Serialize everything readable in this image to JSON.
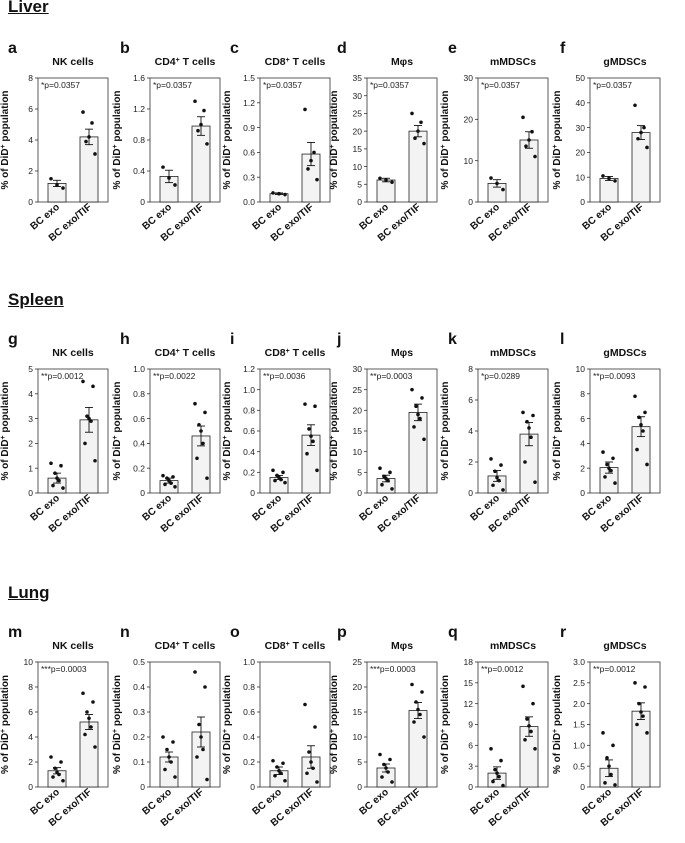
{
  "sections": [
    {
      "title": "Liver"
    },
    {
      "title": "Spleen"
    },
    {
      "title": "Lung"
    }
  ],
  "colors": {
    "bar_fill": "#f3f3f3",
    "bar_stroke": "#222222",
    "point": "#111111"
  },
  "chart_data": [
    {
      "panel": "a",
      "title": "NK cells",
      "title_sup": "",
      "title_suffix": "",
      "section": "Liver",
      "type": "bar",
      "ylabel": "% of DiD+ population",
      "categories": [
        "BC exo",
        "BC exo/TIF"
      ],
      "means": [
        1.2,
        4.2
      ],
      "sem": [
        0.2,
        0.5
      ],
      "points": [
        [
          0.9,
          1.1,
          1.5
        ],
        [
          3.1,
          3.9,
          4.2,
          5.1,
          5.8
        ]
      ],
      "annotation": "*p=0.0357",
      "ylim": [
        0,
        8
      ],
      "yticks": [
        0,
        2,
        4,
        6,
        8
      ],
      "tick_labels": [
        "0",
        "2",
        "4",
        "6",
        "8"
      ]
    },
    {
      "panel": "b",
      "title": "CD4",
      "title_sup": "+",
      "title_suffix": " T cells",
      "section": "Liver",
      "type": "bar",
      "ylabel": "% of DiD+ population",
      "categories": [
        "BC exo",
        "BC exo/TIF"
      ],
      "means": [
        0.33,
        0.98
      ],
      "sem": [
        0.08,
        0.12
      ],
      "points": [
        [
          0.22,
          0.31,
          0.45
        ],
        [
          0.75,
          0.92,
          1.0,
          1.18,
          1.3
        ]
      ],
      "annotation": "*p=0.0357",
      "ylim": [
        0,
        1.6
      ],
      "yticks": [
        0,
        0.4,
        0.8,
        1.2,
        1.6
      ],
      "tick_labels": [
        "0",
        "0.4",
        "0.8",
        "1.2",
        "1.6"
      ]
    },
    {
      "panel": "c",
      "title": "CD8",
      "title_sup": "+",
      "title_suffix": " T cells",
      "section": "Liver",
      "type": "bar",
      "ylabel": "% of DiD+ population",
      "categories": [
        "BC exo",
        "BC exo/TIF"
      ],
      "means": [
        0.1,
        0.58
      ],
      "sem": [
        0.01,
        0.14
      ],
      "points": [
        [
          0.09,
          0.1,
          0.11
        ],
        [
          0.27,
          0.4,
          0.5,
          0.6,
          1.12
        ]
      ],
      "annotation": "*p=0.0357",
      "ylim": [
        0,
        1.5
      ],
      "yticks": [
        0,
        0.3,
        0.6,
        0.9,
        1.2,
        1.5
      ],
      "tick_labels": [
        "0.0",
        "0.3",
        "0.6",
        "0.9",
        "1.2",
        "1.5"
      ]
    },
    {
      "panel": "d",
      "title": "Mφs",
      "title_sup": "",
      "title_suffix": "",
      "section": "Liver",
      "type": "bar",
      "ylabel": "% of DiD+ population",
      "categories": [
        "BC exo",
        "BC exo/TIF"
      ],
      "means": [
        6.2,
        20
      ],
      "sem": [
        0.5,
        1.6
      ],
      "points": [
        [
          5.6,
          6.2,
          6.7
        ],
        [
          16.5,
          18,
          20,
          22.5,
          25
        ]
      ],
      "annotation": "*p=0.0357",
      "ylim": [
        0,
        35
      ],
      "yticks": [
        0,
        5,
        10,
        15,
        20,
        25,
        30,
        35
      ],
      "tick_labels": [
        "0",
        "5",
        "10",
        "15",
        "20",
        "25",
        "30",
        "35"
      ]
    },
    {
      "panel": "e",
      "title": "mMDSCs",
      "title_sup": "",
      "title_suffix": "",
      "section": "Liver",
      "type": "bar",
      "ylabel": "% of DiD+ population",
      "categories": [
        "BC exo",
        "BC exo/TIF"
      ],
      "means": [
        4.5,
        15
      ],
      "sem": [
        0.9,
        2
      ],
      "points": [
        [
          3,
          4.5,
          5.8
        ],
        [
          11,
          13.5,
          15,
          17,
          20.5
        ]
      ],
      "annotation": "*p=0.0357",
      "ylim": [
        0,
        30
      ],
      "yticks": [
        0,
        10,
        20,
        30
      ],
      "tick_labels": [
        "0",
        "10",
        "20",
        "30"
      ]
    },
    {
      "panel": "f",
      "title": "gMDSCs",
      "title_sup": "",
      "title_suffix": "",
      "section": "Liver",
      "type": "bar",
      "ylabel": "% of DiD+ population",
      "categories": [
        "BC exo",
        "BC exo/TIF"
      ],
      "means": [
        9.5,
        28
      ],
      "sem": [
        0.8,
        2.8
      ],
      "points": [
        [
          8.5,
          9.5,
          10.5
        ],
        [
          22,
          25.5,
          28,
          30,
          39
        ]
      ],
      "annotation": "*p=0.0357",
      "ylim": [
        0,
        50
      ],
      "yticks": [
        0,
        10,
        20,
        30,
        40,
        50
      ],
      "tick_labels": [
        "0",
        "10",
        "20",
        "30",
        "40",
        "50"
      ]
    },
    {
      "panel": "g",
      "title": "NK cells",
      "title_sup": "",
      "title_suffix": "",
      "section": "Spleen",
      "type": "bar",
      "ylabel": "% of DiD+ population",
      "categories": [
        "BC exo",
        "BC exo/TIF"
      ],
      "means": [
        0.6,
        2.95
      ],
      "sem": [
        0.2,
        0.5
      ],
      "points": [
        [
          0.2,
          0.3,
          0.5,
          0.6,
          0.8,
          1.1,
          1.2
        ],
        [
          1.3,
          2.0,
          2.9,
          3.0,
          3.1,
          4.3,
          4.5
        ]
      ],
      "annotation": "**p=0.0012",
      "ylim": [
        0,
        5
      ],
      "yticks": [
        0,
        1,
        2,
        3,
        4,
        5
      ],
      "tick_labels": [
        "0",
        "1",
        "2",
        "3",
        "4",
        "5"
      ]
    },
    {
      "panel": "h",
      "title": "CD4",
      "title_sup": "+",
      "title_suffix": " T cells",
      "section": "Spleen",
      "type": "bar",
      "ylabel": "% of DiD+ population",
      "categories": [
        "BC exo",
        "BC exo/TIF"
      ],
      "means": [
        0.1,
        0.46
      ],
      "sem": [
        0.02,
        0.08
      ],
      "points": [
        [
          0.05,
          0.07,
          0.08,
          0.1,
          0.12,
          0.13,
          0.14
        ],
        [
          0.12,
          0.28,
          0.4,
          0.5,
          0.55,
          0.65,
          0.72
        ]
      ],
      "annotation": "**p=0.0022",
      "ylim": [
        0,
        1
      ],
      "yticks": [
        0,
        0.2,
        0.4,
        0.6,
        0.8,
        1
      ],
      "tick_labels": [
        "0",
        "0.2",
        "0.4",
        "0.6",
        "0.8",
        "1.0"
      ]
    },
    {
      "panel": "i",
      "title": "CD8",
      "title_sup": "+",
      "title_suffix": " T cells",
      "section": "Spleen",
      "type": "bar",
      "ylabel": "% of DiD+ population",
      "categories": [
        "BC exo",
        "BC exo/TIF"
      ],
      "means": [
        0.15,
        0.56
      ],
      "sem": [
        0.02,
        0.1
      ],
      "points": [
        [
          0.1,
          0.12,
          0.13,
          0.15,
          0.17,
          0.2,
          0.22
        ],
        [
          0.22,
          0.38,
          0.5,
          0.55,
          0.62,
          0.84,
          0.86
        ]
      ],
      "annotation": "**p=0.0036",
      "ylim": [
        0,
        1.2
      ],
      "yticks": [
        0,
        0.2,
        0.4,
        0.6,
        0.8,
        1.0,
        1.2
      ],
      "tick_labels": [
        "0",
        "0.2",
        "0.4",
        "0.6",
        "0.8",
        "1.0",
        "1.2"
      ]
    },
    {
      "panel": "j",
      "title": "Mφs",
      "title_sup": "",
      "title_suffix": "",
      "section": "Spleen",
      "type": "bar",
      "ylabel": "% of DiD+ population",
      "categories": [
        "BC exo",
        "BC exo/TIF"
      ],
      "means": [
        3.5,
        19.5
      ],
      "sem": [
        0.8,
        2
      ],
      "points": [
        [
          1,
          2,
          3,
          3.5,
          4,
          5,
          6
        ],
        [
          13,
          16,
          18,
          19,
          21,
          23,
          25
        ]
      ],
      "annotation": "**p=0.0003",
      "ylim": [
        0,
        30
      ],
      "yticks": [
        0,
        5,
        10,
        15,
        20,
        25,
        30
      ],
      "tick_labels": [
        "0",
        "5",
        "10",
        "15",
        "20",
        "25",
        "30"
      ]
    },
    {
      "panel": "k",
      "title": "mMDSCs",
      "title_sup": "",
      "title_suffix": "",
      "section": "Spleen",
      "type": "bar",
      "ylabel": "% of DiD+ population",
      "categories": [
        "BC exo",
        "BC exo/TIF"
      ],
      "means": [
        1.1,
        3.8
      ],
      "sem": [
        0.35,
        0.75
      ],
      "points": [
        [
          0.2,
          0.5,
          0.8,
          1.0,
          1.4,
          1.8,
          2.2
        ],
        [
          0.7,
          2.0,
          3.6,
          4.2,
          4.6,
          5.0,
          5.2
        ]
      ],
      "annotation": "*p=0.0289",
      "ylim": [
        0,
        8
      ],
      "yticks": [
        0,
        2,
        4,
        6,
        8
      ],
      "tick_labels": [
        "0",
        "2",
        "4",
        "6",
        "8"
      ]
    },
    {
      "panel": "l",
      "title": "gMDSCs",
      "title_sup": "",
      "title_suffix": "",
      "section": "Spleen",
      "type": "bar",
      "ylabel": "% of DiD+ population",
      "categories": [
        "BC exo",
        "BC exo/TIF"
      ],
      "means": [
        2.05,
        5.35
      ],
      "sem": [
        0.45,
        0.8
      ],
      "points": [
        [
          0.8,
          1.3,
          1.8,
          2.0,
          2.3,
          2.8,
          3.3
        ],
        [
          2.3,
          3.5,
          5.0,
          5.5,
          6.1,
          6.5,
          7.8
        ]
      ],
      "annotation": "**p=0.0093",
      "ylim": [
        0,
        10
      ],
      "yticks": [
        0,
        2,
        4,
        6,
        8,
        10
      ],
      "tick_labels": [
        "0",
        "2",
        "4",
        "6",
        "8",
        "10"
      ]
    },
    {
      "panel": "m",
      "title": "NK cells",
      "title_sup": "",
      "title_suffix": "",
      "section": "Lung",
      "type": "bar",
      "ylabel": "% of DiD+ population",
      "categories": [
        "BC exo",
        "BC exo/TIF"
      ],
      "means": [
        1.3,
        5.2
      ],
      "sem": [
        0.25,
        0.6
      ],
      "points": [
        [
          0.5,
          0.8,
          1.0,
          1.2,
          1.5,
          2.0,
          2.4
        ],
        [
          3.2,
          4.2,
          4.8,
          5.5,
          6.0,
          6.8,
          7.5
        ]
      ],
      "annotation": "***p=0.0003",
      "ylim": [
        0,
        10
      ],
      "yticks": [
        0,
        2,
        4,
        6,
        8,
        10
      ],
      "tick_labels": [
        "0",
        "2",
        "4",
        "6",
        "8",
        "10"
      ]
    },
    {
      "panel": "n",
      "title": "CD4",
      "title_sup": "+",
      "title_suffix": " T cells",
      "section": "Lung",
      "type": "bar",
      "ylabel": "% of DiD+ population",
      "categories": [
        "BC exo",
        "BC exo/TIF"
      ],
      "means": [
        0.12,
        0.22
      ],
      "sem": [
        0.02,
        0.06
      ],
      "points": [
        [
          0.04,
          0.07,
          0.1,
          0.12,
          0.15,
          0.18,
          0.2
        ],
        [
          0.03,
          0.12,
          0.15,
          0.2,
          0.25,
          0.4,
          0.46
        ]
      ],
      "annotation": "",
      "ylim": [
        0,
        0.5
      ],
      "yticks": [
        0,
        0.1,
        0.2,
        0.3,
        0.4,
        0.5
      ],
      "tick_labels": [
        "0",
        "0.1",
        "0.2",
        "0.3",
        "0.4",
        "0.5"
      ]
    },
    {
      "panel": "o",
      "title": "CD8",
      "title_sup": "+",
      "title_suffix": " T cells",
      "section": "Lung",
      "type": "bar",
      "ylabel": "% of DiD+ population",
      "categories": [
        "BC exo",
        "BC exo/TIF"
      ],
      "means": [
        0.13,
        0.24
      ],
      "sem": [
        0.03,
        0.09
      ],
      "points": [
        [
          0.05,
          0.09,
          0.11,
          0.13,
          0.16,
          0.19,
          0.21
        ],
        [
          0.04,
          0.11,
          0.15,
          0.2,
          0.28,
          0.48,
          0.66
        ]
      ],
      "annotation": "",
      "ylim": [
        0,
        1
      ],
      "yticks": [
        0,
        0.2,
        0.4,
        0.6,
        0.8,
        1.0
      ],
      "tick_labels": [
        "0",
        "0.2",
        "0.4",
        "0.6",
        "0.8",
        "1.0"
      ]
    },
    {
      "panel": "p",
      "title": "Mφs",
      "title_sup": "",
      "title_suffix": "",
      "section": "Lung",
      "type": "bar",
      "ylabel": "% of DiD+ population",
      "categories": [
        "BC exo",
        "BC exo/TIF"
      ],
      "means": [
        3.8,
        15.3
      ],
      "sem": [
        0.8,
        1.6
      ],
      "points": [
        [
          1,
          2,
          3,
          3.8,
          4.5,
          5.5,
          6.5
        ],
        [
          10,
          13,
          14.5,
          15.5,
          17,
          19,
          20.5
        ]
      ],
      "annotation": "***p=0.0003",
      "ylim": [
        0,
        25
      ],
      "yticks": [
        0,
        5,
        10,
        15,
        20,
        25
      ],
      "tick_labels": [
        "0",
        "5",
        "10",
        "15",
        "20",
        "25"
      ]
    },
    {
      "panel": "q",
      "title": "mMDSCs",
      "title_sup": "",
      "title_suffix": "",
      "section": "Lung",
      "type": "bar",
      "ylabel": "% of DiD+ population",
      "categories": [
        "BC exo",
        "BC exo/TIF"
      ],
      "means": [
        2.0,
        8.7
      ],
      "sem": [
        0.9,
        1.4
      ],
      "points": [
        [
          0.2,
          0.8,
          1.5,
          2.0,
          2.5,
          3.8,
          5.5
        ],
        [
          5.5,
          6.8,
          8.0,
          8.8,
          9.8,
          12.0,
          14.5
        ]
      ],
      "annotation": "**p=0.0012",
      "ylim": [
        0,
        18
      ],
      "yticks": [
        0,
        3,
        6,
        9,
        12,
        15,
        18
      ],
      "tick_labels": [
        "0",
        "3",
        "6",
        "9",
        "12",
        "15",
        "18"
      ]
    },
    {
      "panel": "r",
      "title": "gMDSCs",
      "title_sup": "",
      "title_suffix": "",
      "section": "Lung",
      "type": "bar",
      "ylabel": "% of DiD+ population",
      "categories": [
        "BC exo",
        "BC exo/TIF"
      ],
      "means": [
        0.45,
        1.82
      ],
      "sem": [
        0.2,
        0.2
      ],
      "points": [
        [
          0.05,
          0.1,
          0.3,
          0.5,
          0.7,
          1.0,
          1.3
        ],
        [
          1.3,
          1.5,
          1.7,
          1.8,
          2.0,
          2.4,
          2.5
        ]
      ],
      "annotation": "**p=0.0012",
      "ylim": [
        0,
        3
      ],
      "yticks": [
        0,
        0.5,
        1,
        1.5,
        2,
        2.5,
        3
      ],
      "tick_labels": [
        "0",
        "0.5",
        "1.0",
        "1.5",
        "2.0",
        "2.5",
        "3.0"
      ]
    }
  ]
}
